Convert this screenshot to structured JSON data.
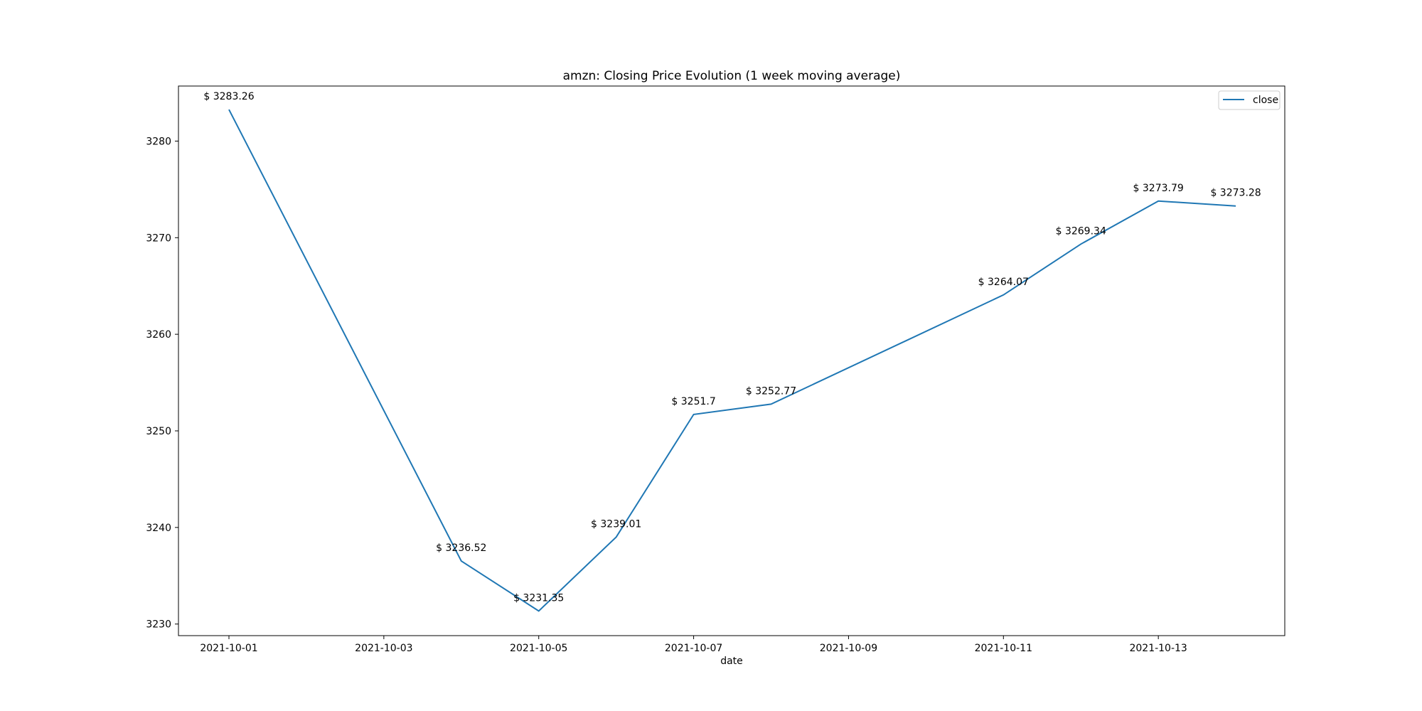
{
  "chart_data": {
    "type": "line",
    "title": "amzn: Closing Price Evolution (1 week moving average)",
    "xlabel": "date",
    "ylabel": "",
    "x": [
      "2021-10-01",
      "2021-10-04",
      "2021-10-05",
      "2021-10-06",
      "2021-10-07",
      "2021-10-08",
      "2021-10-11",
      "2021-10-12",
      "2021-10-13",
      "2021-10-14"
    ],
    "series": [
      {
        "name": "close",
        "color": "#1f77b4",
        "values": [
          3283.26,
          3236.52,
          3231.35,
          3239.01,
          3251.7,
          3252.77,
          3264.07,
          3269.34,
          3273.79,
          3273.28
        ]
      }
    ],
    "data_labels": [
      "$ 3283.26",
      "$ 3236.52",
      "$ 3231.35",
      "$ 3239.01",
      "$ 3251.7",
      "$ 3252.77",
      "$ 3264.07",
      "$ 3269.34",
      "$ 3273.79",
      "$ 3273.28"
    ],
    "x_ticks": [
      "2021-10-01",
      "2021-10-03",
      "2021-10-05",
      "2021-10-07",
      "2021-10-09",
      "2021-10-11",
      "2021-10-13"
    ],
    "y_ticks": [
      3230,
      3240,
      3250,
      3260,
      3270,
      3280
    ],
    "xlim": [
      "2021-09-30",
      "2021-10-14"
    ],
    "ylim": [
      3228.8,
      3285.7
    ],
    "grid": false,
    "legend": "top-right"
  }
}
